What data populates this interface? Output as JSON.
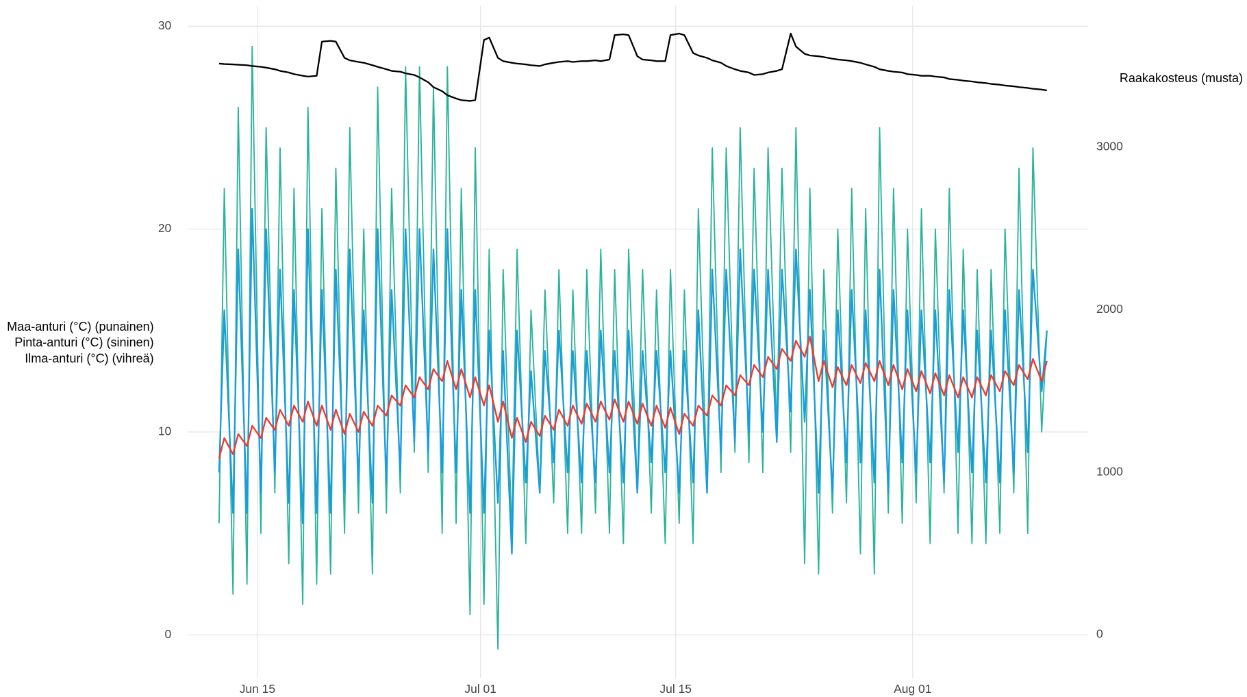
{
  "chart_data": {
    "type": "line",
    "ylabel": [
      "Maa-anturi (°C) (punainen)",
      "Pinta-anturi (°C) (sininen)",
      "Ilma-anturi (°C) (vihreä)"
    ],
    "y2label": "Raakakosteus (musta)",
    "xlim": [
      "06-10",
      "08-13"
    ],
    "xticks": [
      {
        "value": "06-15",
        "label": "Jun 15"
      },
      {
        "value": "07-01",
        "label": "Jul 01"
      },
      {
        "value": "07-15",
        "label": "Jul 15"
      },
      {
        "value": "08-01",
        "label": "Aug 01"
      }
    ],
    "ylim": [
      -1.8,
      31
    ],
    "yticks": [
      0,
      10,
      20,
      30
    ],
    "y2lim": [
      -225,
      3870
    ],
    "y2ticks": [
      0,
      1000,
      2000,
      3000
    ],
    "grid": true,
    "x": [
      "06-12 06:00",
      "06-12 15:00",
      "06-13 06:00",
      "06-13 15:00",
      "06-14 06:00",
      "06-14 15:00",
      "06-15 06:00",
      "06-15 15:00",
      "06-16 06:00",
      "06-16 15:00",
      "06-17 06:00",
      "06-17 15:00",
      "06-18 06:00",
      "06-18 15:00",
      "06-19 06:00",
      "06-19 15:00",
      "06-20 06:00",
      "06-20 15:00",
      "06-21 06:00",
      "06-21 15:00",
      "06-22 06:00",
      "06-22 15:00",
      "06-23 06:00",
      "06-23 15:00",
      "06-24 06:00",
      "06-24 15:00",
      "06-25 06:00",
      "06-25 15:00",
      "06-26 06:00",
      "06-26 15:00",
      "06-27 06:00",
      "06-27 15:00",
      "06-28 06:00",
      "06-28 15:00",
      "06-29 06:00",
      "06-29 15:00",
      "06-30 06:00",
      "06-30 15:00",
      "07-01 06:00",
      "07-01 15:00",
      "07-02 06:00",
      "07-02 15:00",
      "07-03 06:00",
      "07-03 15:00",
      "07-04 06:00",
      "07-04 15:00",
      "07-05 06:00",
      "07-05 15:00",
      "07-06 06:00",
      "07-06 15:00",
      "07-07 06:00",
      "07-07 15:00",
      "07-08 06:00",
      "07-08 15:00",
      "07-09 06:00",
      "07-09 15:00",
      "07-10 06:00",
      "07-10 15:00",
      "07-11 06:00",
      "07-11 15:00",
      "07-12 06:00",
      "07-12 15:00",
      "07-13 06:00",
      "07-13 15:00",
      "07-14 06:00",
      "07-14 15:00",
      "07-15 06:00",
      "07-15 15:00",
      "07-16 06:00",
      "07-16 15:00",
      "07-17 06:00",
      "07-17 15:00",
      "07-18 06:00",
      "07-18 15:00",
      "07-19 06:00",
      "07-19 15:00",
      "07-20 06:00",
      "07-20 15:00",
      "07-21 06:00",
      "07-21 15:00",
      "07-22 06:00",
      "07-22 15:00",
      "07-23 06:00",
      "07-23 15:00",
      "07-24 06:00",
      "07-24 15:00",
      "07-25 06:00",
      "07-25 15:00",
      "07-26 06:00",
      "07-26 15:00",
      "07-27 06:00",
      "07-27 15:00",
      "07-28 06:00",
      "07-28 15:00",
      "07-29 06:00",
      "07-29 15:00",
      "07-30 06:00",
      "07-30 15:00",
      "07-31 06:00",
      "07-31 15:00",
      "08-01 06:00",
      "08-01 15:00",
      "08-02 06:00",
      "08-02 15:00",
      "08-03 06:00",
      "08-03 15:00",
      "08-04 06:00",
      "08-04 15:00",
      "08-05 06:00",
      "08-05 15:00",
      "08-06 06:00",
      "08-06 15:00",
      "08-07 06:00",
      "08-07 15:00",
      "08-08 06:00",
      "08-08 15:00",
      "08-09 06:00",
      "08-09 15:00",
      "08-10 06:00",
      "08-10 15:00"
    ],
    "series": [
      {
        "color": "#2ab39a",
        "values": [
          5.5,
          22,
          2,
          26,
          2.5,
          29,
          5,
          25,
          7,
          24,
          3.5,
          22,
          1.5,
          26,
          2.5,
          21,
          3,
          23,
          5,
          25,
          6,
          20,
          3,
          27,
          6,
          22,
          7,
          28,
          9,
          28,
          8,
          27,
          5,
          28,
          5.5,
          22,
          1,
          24,
          1.5,
          19,
          -0.7,
          18,
          5,
          19,
          4.5,
          16,
          7,
          17,
          6.5,
          18,
          5,
          17,
          5,
          18,
          6,
          19,
          5,
          18,
          4.5,
          19,
          7,
          18,
          6,
          17,
          4.5,
          18,
          5.5,
          17,
          4.5,
          21,
          7,
          24,
          8,
          24,
          9,
          25,
          8.5,
          23,
          8,
          24,
          10,
          23,
          9,
          25,
          3.5,
          22,
          3,
          18,
          6,
          20,
          6.5,
          22,
          4,
          21,
          3,
          25,
          6,
          22,
          5.5,
          20,
          6.5,
          21,
          4.5,
          20,
          7,
          22,
          5,
          19,
          4.5,
          18,
          4.5,
          18,
          5,
          20,
          7,
          23,
          5,
          24,
          10,
          15
        ]
      },
      {
        "color": "#1a9be0",
        "values": [
          8,
          16,
          6,
          19,
          6,
          21,
          7,
          20,
          8,
          18,
          6.5,
          17,
          5.5,
          20,
          6,
          17,
          6,
          18,
          7,
          19,
          7.5,
          16,
          6.5,
          20,
          7.5,
          17,
          8,
          20,
          9.5,
          20,
          9,
          19,
          8,
          20,
          8,
          17,
          6,
          17,
          6,
          15,
          6.5,
          14,
          4,
          15,
          7.5,
          13,
          7,
          14,
          8.5,
          15,
          8,
          14,
          7.5,
          14,
          7.5,
          15,
          8,
          14,
          7.5,
          15,
          7,
          14,
          8.5,
          14,
          8,
          14,
          7,
          14,
          7.5,
          16,
          7,
          18,
          9,
          18,
          9.5,
          19,
          10,
          18,
          10,
          18,
          9.5,
          18,
          11,
          19,
          10.5,
          17,
          7,
          15,
          7,
          16,
          8.5,
          17,
          8.5,
          16,
          7.5,
          18,
          7,
          17,
          8.5,
          16,
          8,
          16,
          8.5,
          16,
          7.5,
          17,
          9,
          16,
          8,
          15,
          7.5,
          15,
          7.5,
          16,
          8,
          17,
          9,
          18,
          12,
          15
        ]
      },
      {
        "color": "#f03a2a",
        "values": [
          8.7,
          9.7,
          8.9,
          9.9,
          9.3,
          10.3,
          9.7,
          10.7,
          10.1,
          11.1,
          10.3,
          11.3,
          10.5,
          11.5,
          10.3,
          11.3,
          10.1,
          11.1,
          9.9,
          10.9,
          10.0,
          11.0,
          10.3,
          11.3,
          10.8,
          11.8,
          11.3,
          12.3,
          11.7,
          12.7,
          12.1,
          13.1,
          12.5,
          13.5,
          12.1,
          13.1,
          11.7,
          12.7,
          11.3,
          12.3,
          10.5,
          11.5,
          9.7,
          10.7,
          9.5,
          10.5,
          9.8,
          10.8,
          10.1,
          11.1,
          10.3,
          11.3,
          10.4,
          11.4,
          10.5,
          11.5,
          10.6,
          11.6,
          10.5,
          11.5,
          10.4,
          11.4,
          10.3,
          11.3,
          10.2,
          11.2,
          9.9,
          10.9,
          10.3,
          11.3,
          10.8,
          11.8,
          11.3,
          12.3,
          11.8,
          12.8,
          12.3,
          13.3,
          12.7,
          13.7,
          13.1,
          14.1,
          13.5,
          14.5,
          13.7,
          14.7,
          12.5,
          13.5,
          12.2,
          13.2,
          12.3,
          13.3,
          12.4,
          13.4,
          12.5,
          13.5,
          12.3,
          13.3,
          12.1,
          13.1,
          12.0,
          13.0,
          11.9,
          12.9,
          11.8,
          12.8,
          11.7,
          12.7,
          11.7,
          12.7,
          11.8,
          12.8,
          12.0,
          13.0,
          12.3,
          13.3,
          12.6,
          13.6,
          12.5,
          13.5
        ]
      },
      {
        "color": "#000000",
        "axis": "y2",
        "values": [
          3515,
          3512,
          3510,
          3508,
          3505,
          3500,
          3495,
          3490,
          3480,
          3470,
          3460,
          3450,
          3440,
          3435,
          3440,
          3650,
          3655,
          3650,
          3550,
          3535,
          3525,
          3520,
          3505,
          3495,
          3480,
          3470,
          3465,
          3455,
          3445,
          3430,
          3400,
          3370,
          3345,
          3320,
          3300,
          3290,
          3285,
          3290,
          3660,
          3675,
          3550,
          3530,
          3520,
          3515,
          3510,
          3505,
          3500,
          3510,
          3520,
          3525,
          3530,
          3525,
          3530,
          3530,
          3535,
          3530,
          3540,
          3690,
          3695,
          3690,
          3560,
          3540,
          3535,
          3530,
          3530,
          3690,
          3700,
          3690,
          3580,
          3565,
          3550,
          3535,
          3520,
          3500,
          3480,
          3470,
          3460,
          3445,
          3450,
          3460,
          3470,
          3480,
          3700,
          3620,
          3575,
          3565,
          3560,
          3555,
          3545,
          3540,
          3535,
          3530,
          3520,
          3510,
          3495,
          3480,
          3470,
          3465,
          3460,
          3450,
          3445,
          3440,
          3440,
          3435,
          3430,
          3420,
          3415,
          3410,
          3405,
          3400,
          3395,
          3390,
          3385,
          3380,
          3375,
          3370,
          3365,
          3360,
          3355,
          3350
        ]
      }
    ]
  }
}
